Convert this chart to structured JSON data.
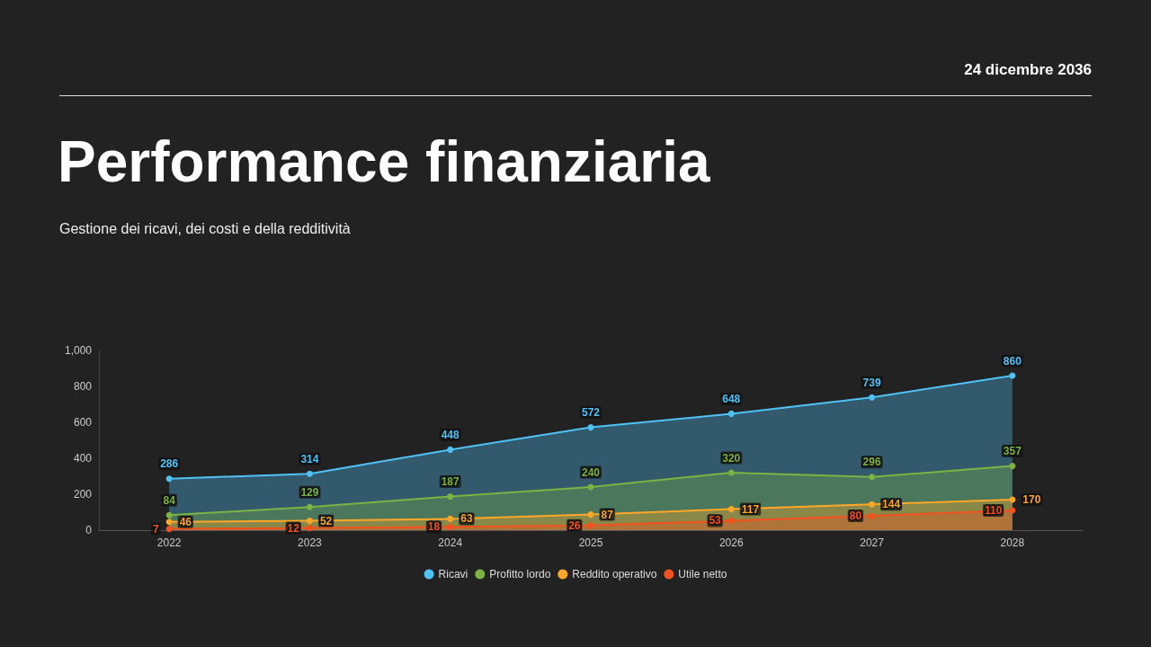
{
  "chart_data": {
    "type": "area",
    "title": "Performance finanziaria",
    "subtitle": "Gestione dei ricavi, dei costi e della redditività",
    "annotations": [
      "24 dicembre 2036"
    ],
    "categories": [
      "2022",
      "2023",
      "2024",
      "2025",
      "2026",
      "2027",
      "2028"
    ],
    "series": [
      {
        "name": "Ricavi",
        "color": "#4fc3f7",
        "values": [
          286,
          314,
          448,
          572,
          648,
          739,
          860
        ]
      },
      {
        "name": "Profitto lordo",
        "color": "#7cb342",
        "values": [
          84,
          129,
          187,
          240,
          320,
          296,
          357
        ]
      },
      {
        "name": "Reddito operativo",
        "color": "#ffa726",
        "values": [
          46,
          52,
          63,
          87,
          117,
          144,
          170
        ]
      },
      {
        "name": "Utile netto",
        "color": "#f4511e",
        "values": [
          7,
          12,
          18,
          26,
          53,
          80,
          110
        ]
      }
    ],
    "ylim": [
      0,
      1000
    ],
    "yticks": [
      0,
      200,
      400,
      600,
      800,
      {
        "value": 1000,
        "label": "1,000"
      }
    ],
    "grid": false,
    "legend": "bottom",
    "marker": "circle",
    "line_style": "solid",
    "data_labels": true
  }
}
